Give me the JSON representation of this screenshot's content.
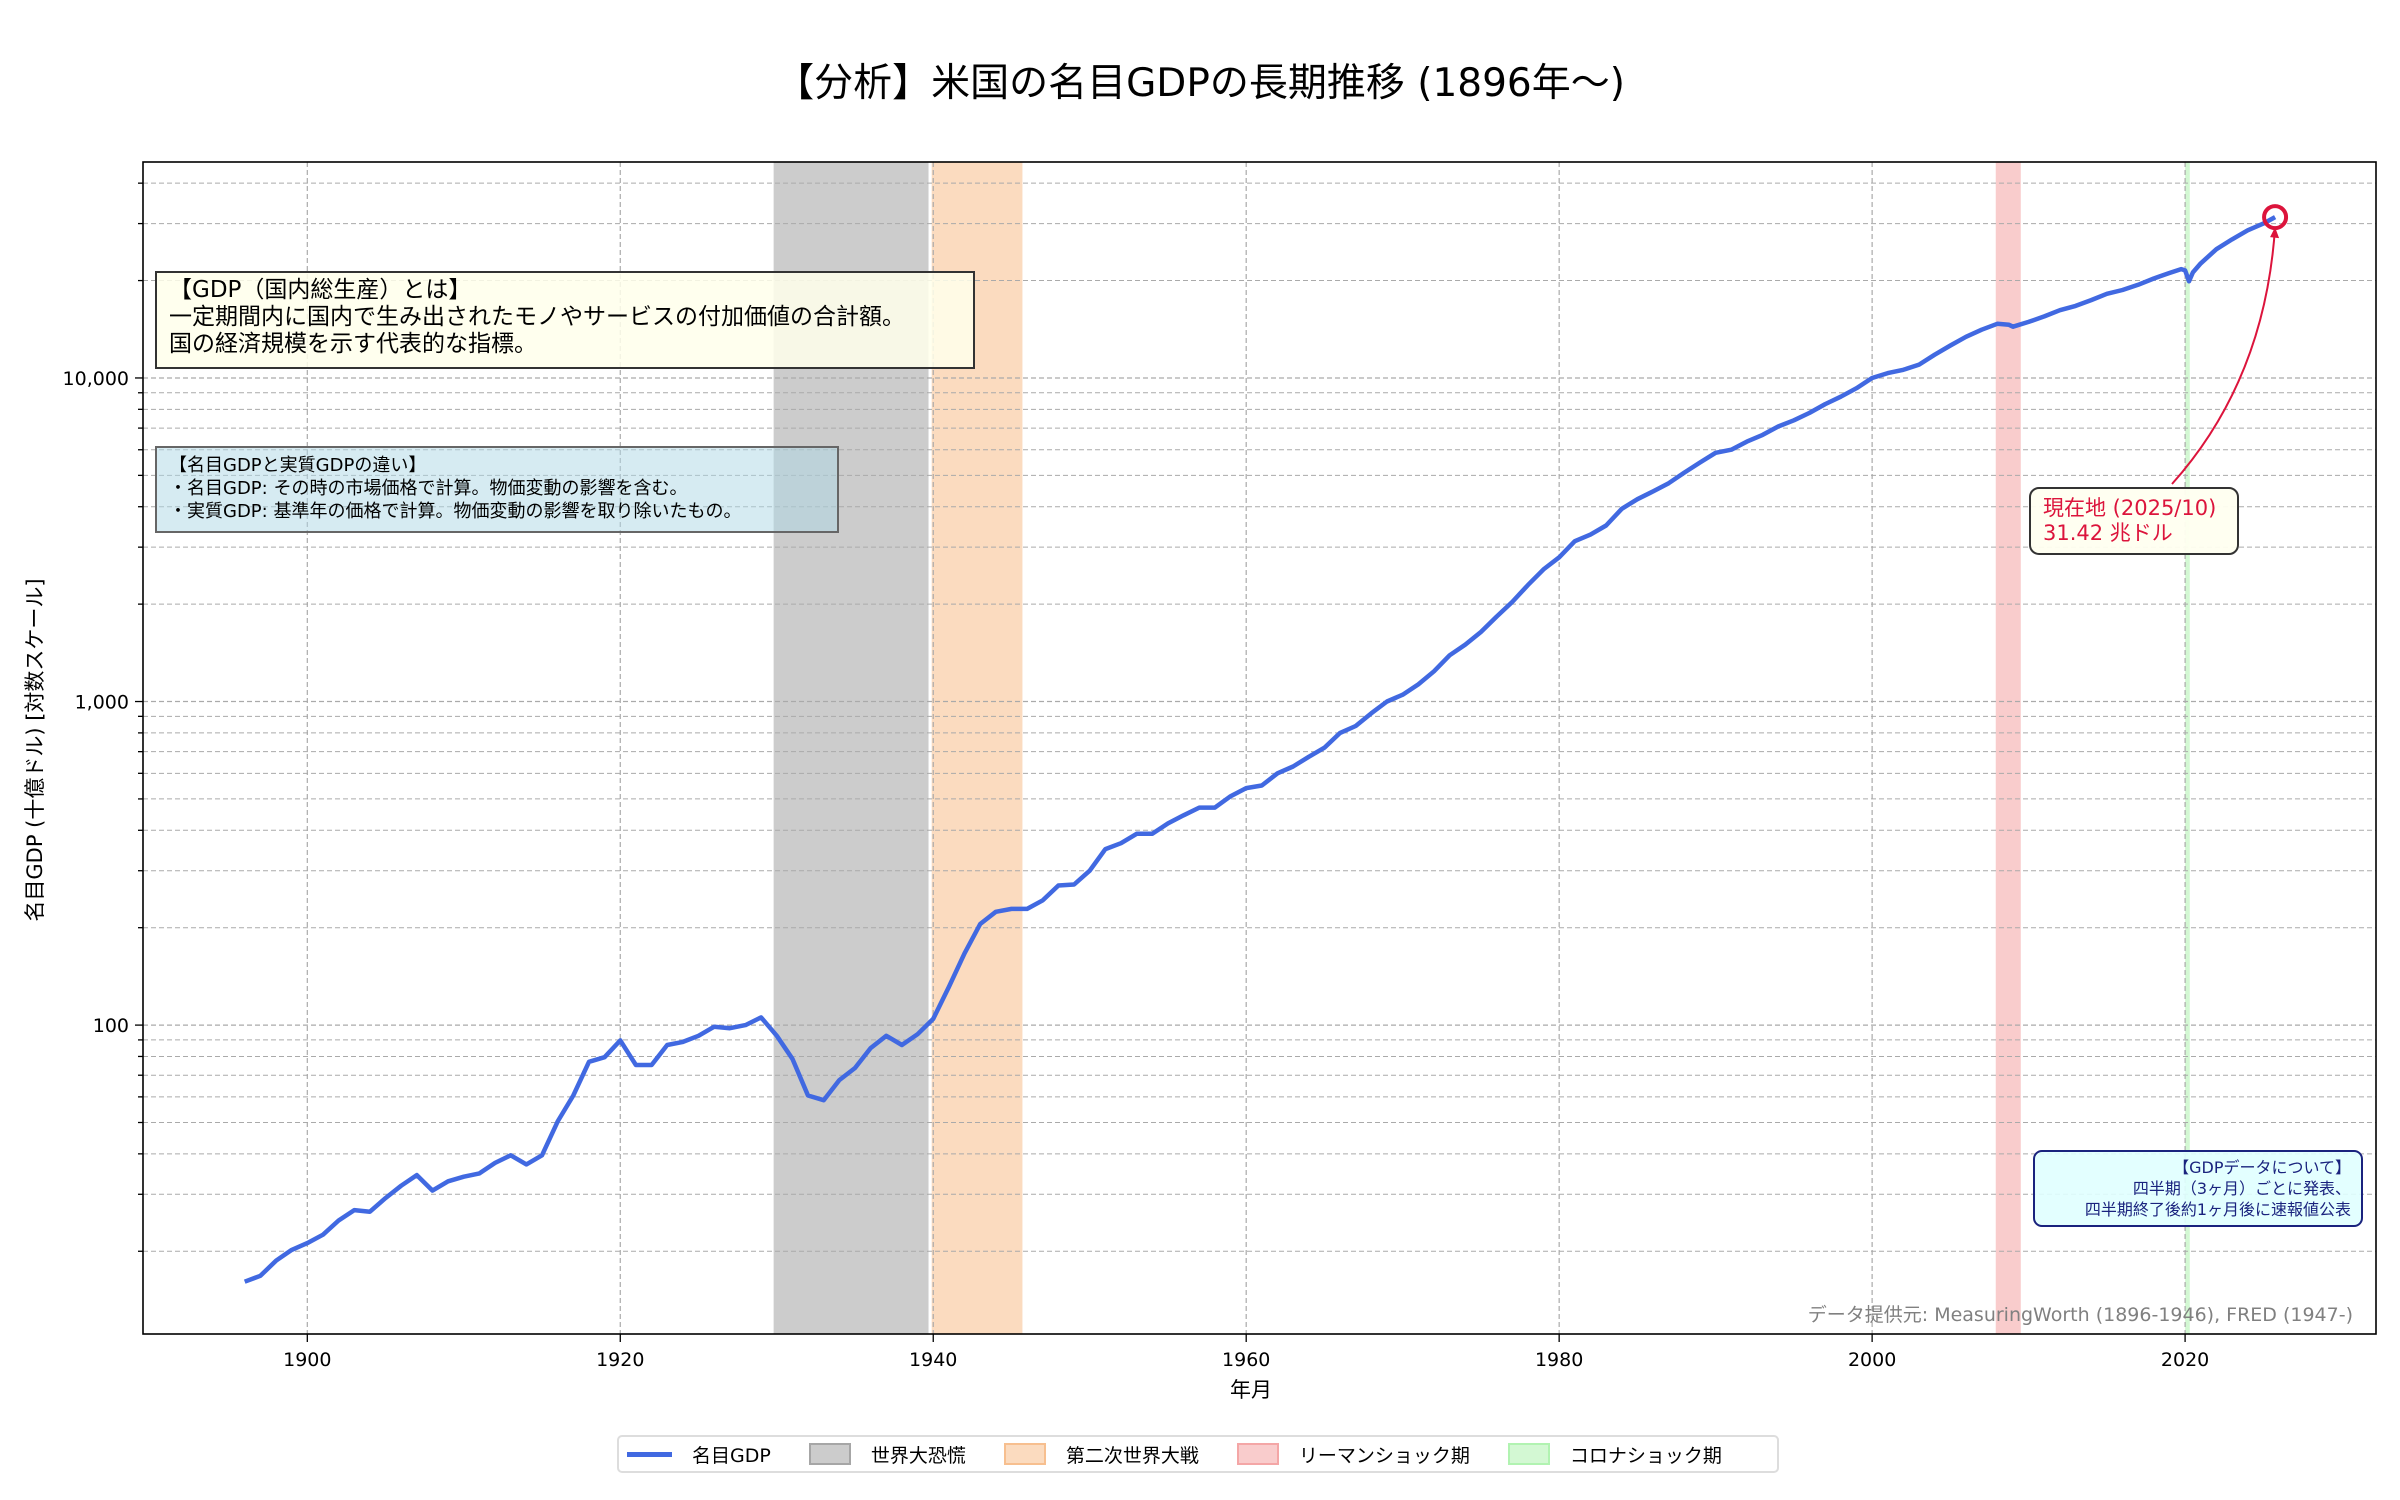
{
  "title": "【分析】米国の名目GDPの長期推移 (1896年〜)",
  "chart_data": {
    "type": "line",
    "title": "【分析】米国の名目GDPの長期推移 (1896年〜)",
    "xlabel": "年月",
    "ylabel": "名目GDP (十億ドル) [対数スケール]",
    "xlim": [
      1889.5,
      2032.2
    ],
    "ylim": [
      11.1,
      46500
    ],
    "y_scale": "log",
    "grid": true,
    "legend_position": "bottom-center",
    "x_ticks": [
      1900,
      1920,
      1940,
      1960,
      1980,
      2000,
      2020
    ],
    "y_ticks": [
      100,
      1000,
      10000
    ],
    "y_tick_labels": [
      "100",
      "1,000",
      "10,000"
    ],
    "series": [
      {
        "name": "名目GDP",
        "color": "#4169e1",
        "x": [
          1896,
          1897,
          1898,
          1899,
          1900,
          1901,
          1902,
          1903,
          1904,
          1905,
          1906,
          1907,
          1908,
          1909,
          1910,
          1911,
          1912,
          1913,
          1914,
          1915,
          1916,
          1917,
          1918,
          1919,
          1920,
          1921,
          1922,
          1923,
          1924,
          1925,
          1926,
          1927,
          1928,
          1929,
          1930,
          1931,
          1932,
          1933,
          1934,
          1935,
          1936,
          1937,
          1938,
          1939,
          1940,
          1941,
          1942,
          1943,
          1944,
          1945,
          1946,
          1947,
          1948,
          1949,
          1950,
          1951,
          1952,
          1953,
          1954,
          1955,
          1956,
          1957,
          1958,
          1959,
          1960,
          1961,
          1962,
          1963,
          1964,
          1965,
          1966,
          1967,
          1968,
          1969,
          1970,
          1971,
          1972,
          1973,
          1974,
          1975,
          1976,
          1977,
          1978,
          1979,
          1980,
          1981,
          1982,
          1983,
          1984,
          1985,
          1986,
          1987,
          1988,
          1989,
          1990,
          1991,
          1992,
          1993,
          1994,
          1995,
          1996,
          1997,
          1998,
          1999,
          2000,
          2001,
          2002,
          2003,
          2004,
          2005,
          2006,
          2007,
          2008,
          2008.75,
          2009,
          2010,
          2011,
          2012,
          2013,
          2014,
          2015,
          2016,
          2017,
          2018,
          2019,
          2019.75,
          2020,
          2020.25,
          2020.5,
          2021,
          2022,
          2023,
          2024,
          2025,
          2025.75
        ],
        "y": [
          16.1,
          16.8,
          18.7,
          20.2,
          21.2,
          22.5,
          24.9,
          26.8,
          26.5,
          29.2,
          31.9,
          34.4,
          30.8,
          32.9,
          34.0,
          34.8,
          37.5,
          39.6,
          37.1,
          39.6,
          50.4,
          60.6,
          77.0,
          79.6,
          89.7,
          75.3,
          75.3,
          86.8,
          88.7,
          92.7,
          98.9,
          97.8,
          100,
          105.6,
          92.7,
          78.7,
          60.6,
          58.6,
          67.6,
          73.7,
          84.9,
          92.7,
          86.8,
          93.7,
          104.5,
          131.2,
          166.6,
          205.3,
          224,
          228.7,
          228.7,
          243,
          270,
          272,
          300,
          350,
          365,
          390,
          390,
          420,
          445,
          470,
          470,
          510,
          540,
          550,
          600,
          630,
          675,
          720,
          800,
          840,
          920,
          1000,
          1050,
          1130,
          1240,
          1390,
          1500,
          1640,
          1830,
          2030,
          2290,
          2560,
          2790,
          3130,
          3280,
          3500,
          3940,
          4220,
          4460,
          4730,
          5100,
          5480,
          5870,
          6000,
          6360,
          6670,
          7080,
          7400,
          7800,
          8300,
          8750,
          9300,
          10000,
          10350,
          10600,
          11000,
          11800,
          12600,
          13400,
          14100,
          14700,
          14600,
          14400,
          14900,
          15500,
          16200,
          16700,
          17400,
          18200,
          18700,
          19400,
          20300,
          21100,
          21700,
          21500,
          19900,
          21200,
          22600,
          25000,
          26800,
          28600,
          30000,
          31420
        ]
      }
    ],
    "shaded_periods": [
      {
        "name": "世界大恐慌",
        "start": 1929.8,
        "end": 1939.7,
        "color": "#808080"
      },
      {
        "name": "第二次世界大戦",
        "start": 1939.9,
        "end": 1945.7,
        "color": "#f4a460"
      },
      {
        "name": "リーマンショック期",
        "start": 2007.9,
        "end": 2009.5,
        "color": "#f08080"
      },
      {
        "name": "コロナショック期",
        "start": 2020.0,
        "end": 2020.3,
        "color": "#90ee90"
      }
    ],
    "annotation": {
      "line1": "現在地 (2025/10)",
      "line2": "31.42 兆ドル",
      "x": 2025.75,
      "y": 31420,
      "color": "#dc143c"
    }
  },
  "info_boxes": {
    "gdp_definition": "【GDP（国内総生産）とは】\n一定期間内に国内で生み出されたモノやサービスの付加価値の合計額。\n国の経済規模を示す代表的な指標。",
    "nominal_vs_real": "【名目GDPと実質GDPの違い】\n・名目GDP: その時の市場価格で計算。物価変動の影響を含む。\n・実質GDP: 基準年の価格で計算。物価変動の影響を取り除いたもの。",
    "data_note": "【GDPデータについて】\n四半期（3ヶ月）ごとに発表、\n四半期終了後約1ヶ月後に速報値公表"
  },
  "source": "データ提供元: MeasuringWorth (1896-1946), FRED (1947-)",
  "legend": [
    "名目GDP",
    "世界大恐慌",
    "第二次世界大戦",
    "リーマンショック期",
    "コロナショック期"
  ]
}
